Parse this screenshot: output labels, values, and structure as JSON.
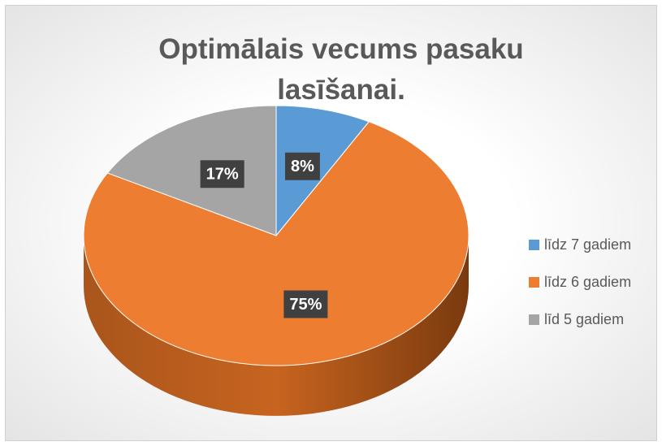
{
  "chart_data": {
    "type": "pie",
    "title": "Optimālais vecums pasaku lasīšanai.",
    "categories": [
      "līdz 7 gadiem",
      "līdz 6 gadiem",
      "līd 5 gadiem"
    ],
    "values": [
      8,
      75,
      17
    ],
    "value_labels": [
      "8%",
      "75%",
      "17%"
    ],
    "colors": [
      "#5b9bd5",
      "#ed7d31",
      "#a5a5a5"
    ],
    "legend": "right"
  }
}
